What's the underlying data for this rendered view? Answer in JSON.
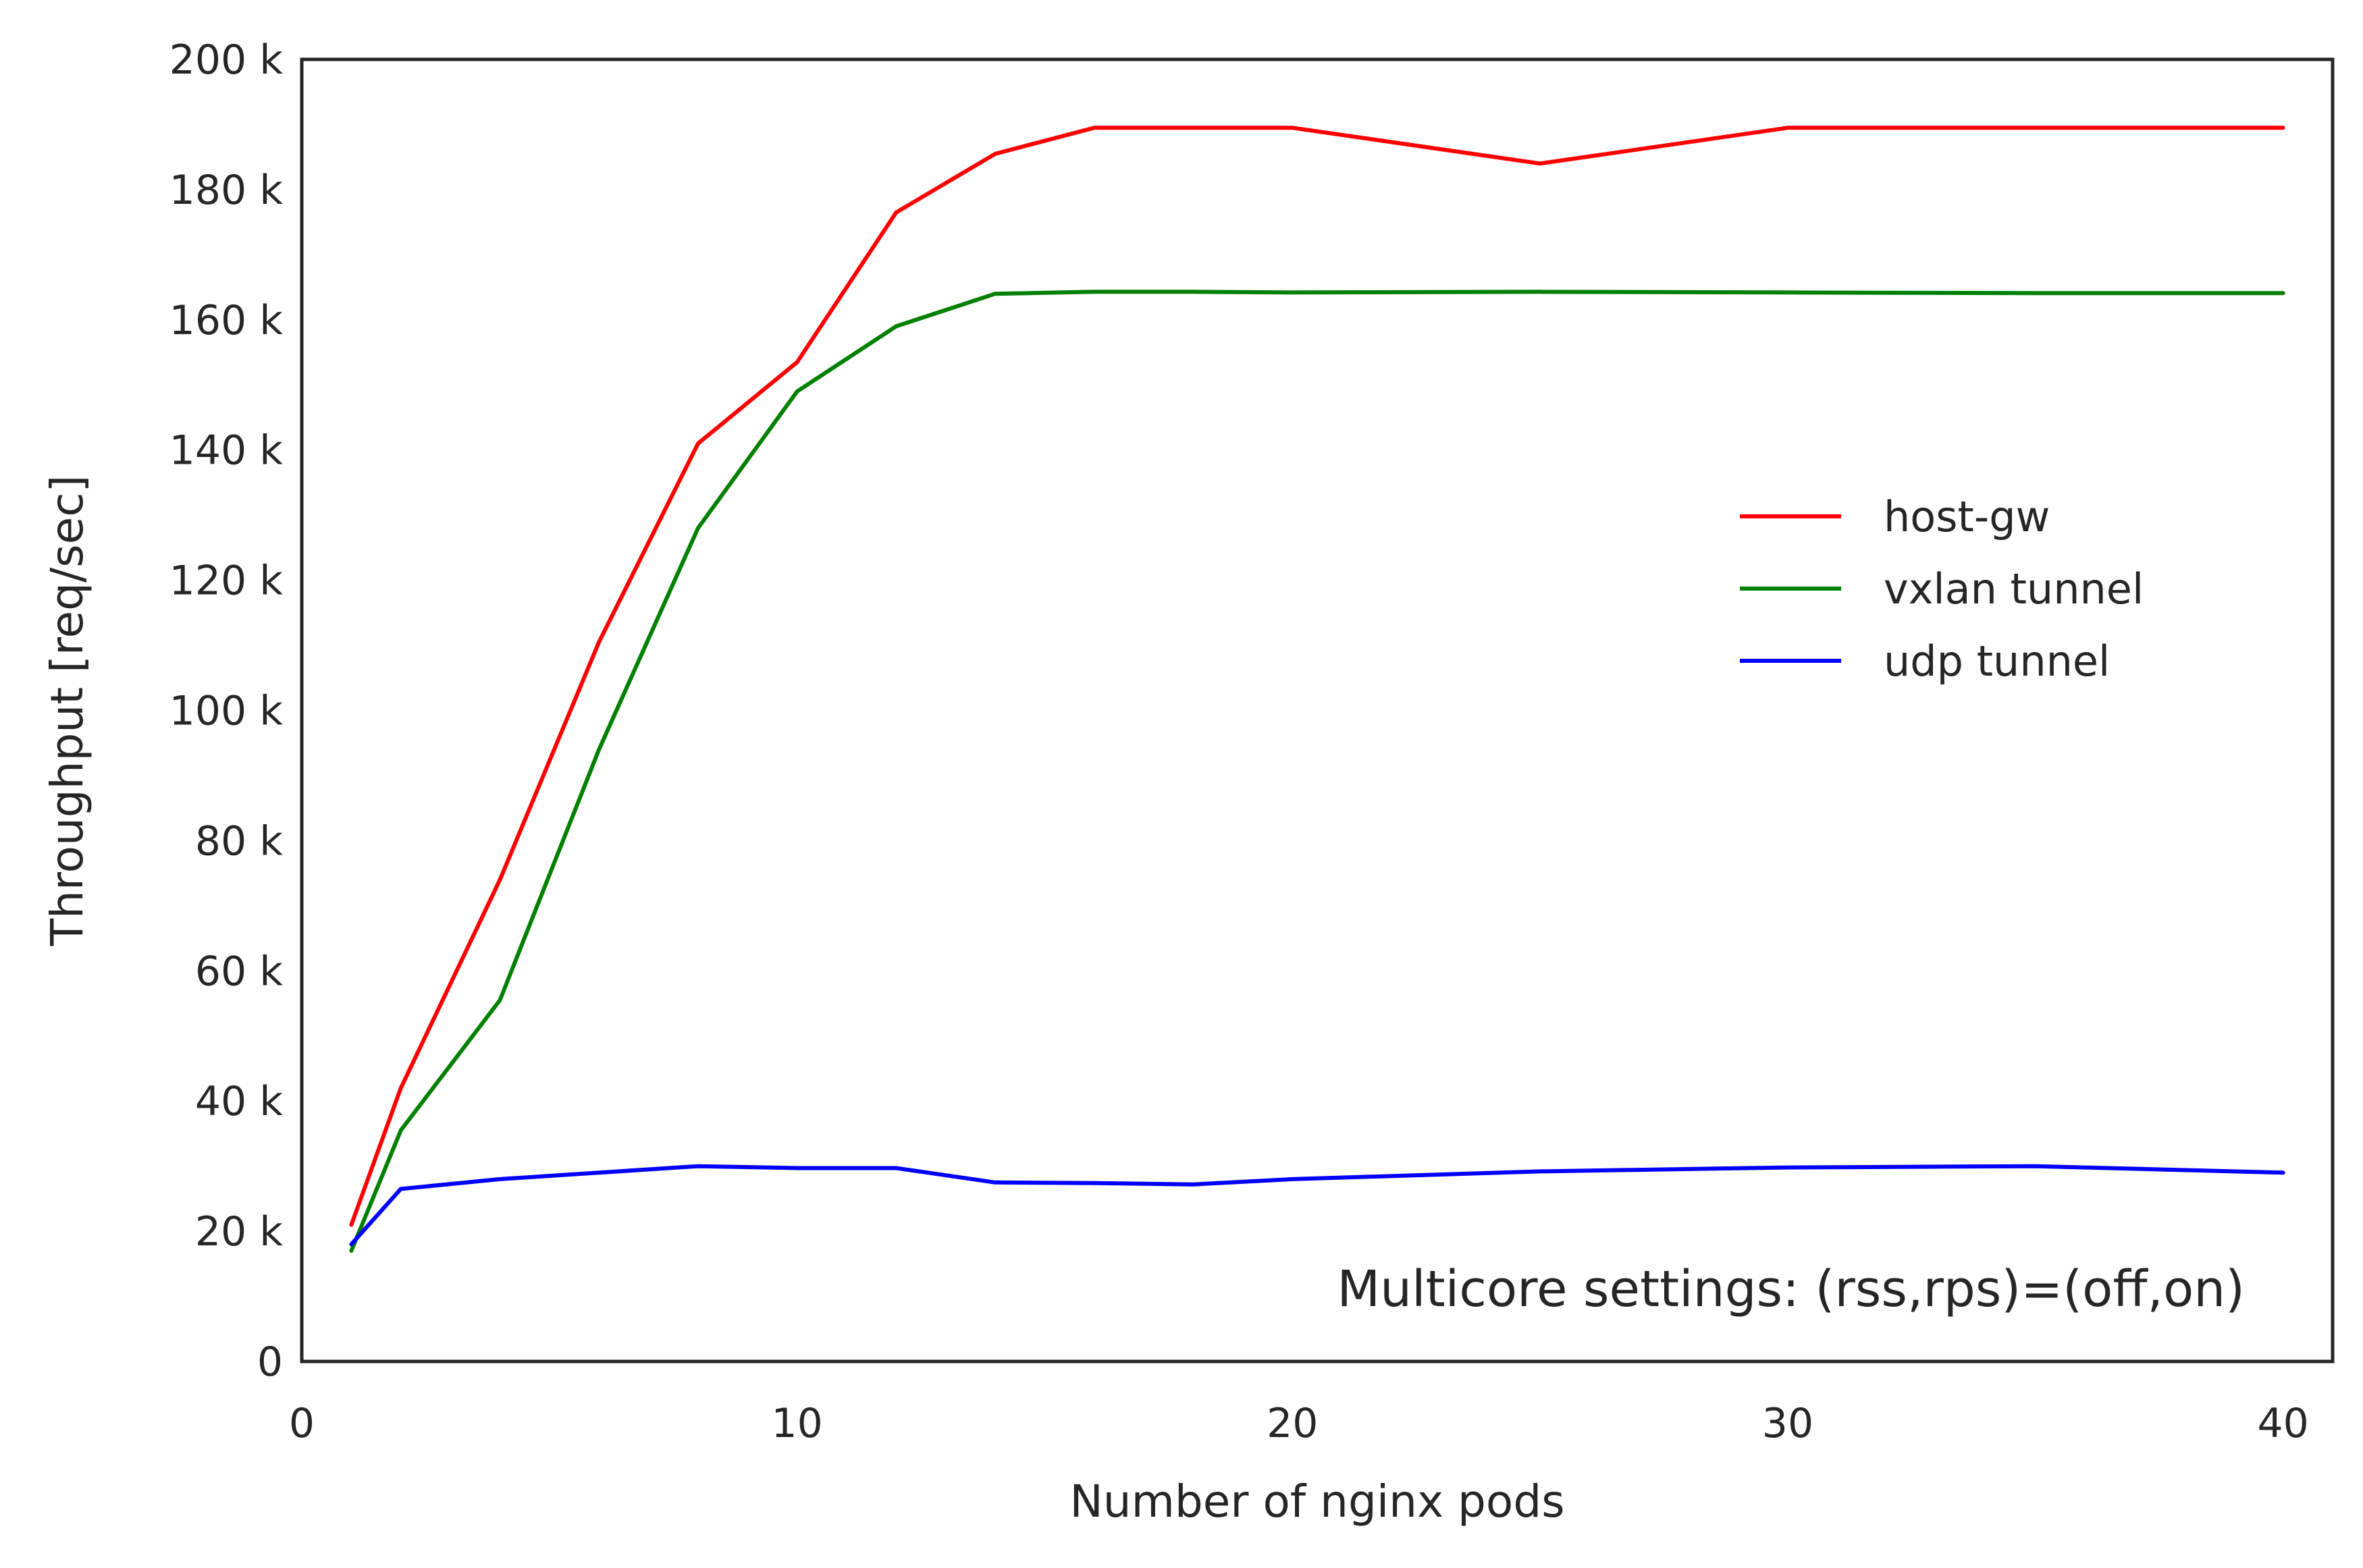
{
  "chart_data": {
    "type": "line",
    "title": "",
    "xlabel": "Number of nginx pods",
    "ylabel": "Throughput [req/sec]",
    "xlim": [
      0,
      41
    ],
    "ylim": [
      0,
      200000
    ],
    "xticks": [
      0,
      10,
      20,
      30,
      40
    ],
    "xtick_labels": [
      "0",
      "10",
      "20",
      "30",
      "40"
    ],
    "yticks": [
      0,
      20000,
      40000,
      60000,
      80000,
      100000,
      120000,
      140000,
      160000,
      180000,
      200000
    ],
    "ytick_labels": [
      "0",
      "20 k",
      "40 k",
      "60 k",
      "80 k",
      "100 k",
      "120 k",
      "140 k",
      "160 k",
      "180 k",
      "200 k"
    ],
    "grid": false,
    "legend_position": "center-right",
    "annotation": "Multicore settings: (rss,rps)=(off,on)",
    "series": [
      {
        "name": "host-gw",
        "color": "#ff0000",
        "x": [
          1,
          2,
          4,
          6,
          8,
          10,
          12,
          14,
          16,
          18,
          20,
          25,
          30,
          35,
          40
        ],
        "y": [
          21000,
          42000,
          74000,
          110500,
          141000,
          153500,
          176500,
          185500,
          189500,
          189500,
          189500,
          184000,
          189500,
          189500,
          189500
        ]
      },
      {
        "name": "vxlan tunnel",
        "color": "#008000",
        "x": [
          1,
          2,
          4,
          6,
          8,
          10,
          12,
          14,
          16,
          18,
          20,
          25,
          30,
          35,
          40
        ],
        "y": [
          17000,
          35500,
          55500,
          94000,
          128000,
          149000,
          159000,
          164000,
          164300,
          164300,
          164200,
          164300,
          164200,
          164100,
          164100
        ]
      },
      {
        "name": "udp tunnel",
        "color": "#0000ff",
        "x": [
          1,
          2,
          4,
          6,
          8,
          10,
          12,
          14,
          16,
          18,
          20,
          25,
          30,
          35,
          40
        ],
        "y": [
          18000,
          26500,
          28000,
          29000,
          30000,
          29700,
          29700,
          27500,
          27400,
          27200,
          28000,
          29200,
          29800,
          30000,
          29000
        ]
      }
    ]
  }
}
